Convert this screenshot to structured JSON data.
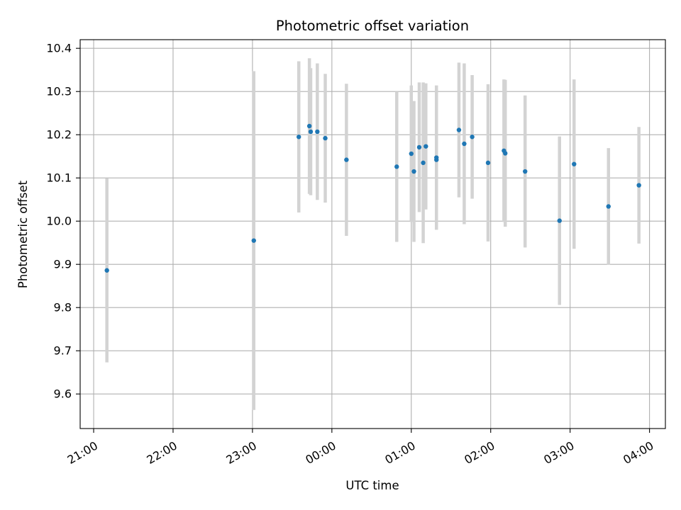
{
  "chart_data": {
    "type": "scatter",
    "title": "Photometric offset variation",
    "xlabel": "UTC time",
    "ylabel": "Photometric offset",
    "x_unit": "hours",
    "xlim": [
      20.83,
      28.2
    ],
    "ylim": [
      9.52,
      10.42
    ],
    "grid": true,
    "x_ticks": [
      {
        "value": 21,
        "label": "21:00"
      },
      {
        "value": 22,
        "label": "22:00"
      },
      {
        "value": 23,
        "label": "23:00"
      },
      {
        "value": 24,
        "label": "00:00"
      },
      {
        "value": 25,
        "label": "01:00"
      },
      {
        "value": 26,
        "label": "02:00"
      },
      {
        "value": 27,
        "label": "03:00"
      },
      {
        "value": 28,
        "label": "04:00"
      }
    ],
    "y_ticks": [
      {
        "value": 9.6,
        "label": "9.6"
      },
      {
        "value": 9.7,
        "label": "9.7"
      },
      {
        "value": 9.8,
        "label": "9.8"
      },
      {
        "value": 9.9,
        "label": "9.9"
      },
      {
        "value": 10.0,
        "label": "10.0"
      },
      {
        "value": 10.1,
        "label": "10.1"
      },
      {
        "value": 10.2,
        "label": "10.2"
      },
      {
        "value": 10.3,
        "label": "10.3"
      },
      {
        "value": 10.4,
        "label": "10.4"
      }
    ],
    "point_color": "#1f77b4",
    "errorbar_color": "#d3d3d3",
    "points": [
      {
        "x": "21:10",
        "y": 9.886,
        "err": 0.213
      },
      {
        "x": "23:01",
        "y": 9.955,
        "err": 0.392
      },
      {
        "x": "23:35",
        "y": 10.195,
        "err": 0.175
      },
      {
        "x": "23:43",
        "y": 10.22,
        "err": 0.157
      },
      {
        "x": "23:44",
        "y": 10.207,
        "err": 0.147
      },
      {
        "x": "23:49",
        "y": 10.207,
        "err": 0.158
      },
      {
        "x": "23:55",
        "y": 10.192,
        "err": 0.149
      },
      {
        "x": "00:11",
        "y": 10.142,
        "err": 0.176
      },
      {
        "x": "00:49",
        "y": 10.126,
        "err": 0.174
      },
      {
        "x": "01:00",
        "y": 10.156,
        "err": 0.158
      },
      {
        "x": "01:02",
        "y": 10.115,
        "err": 0.163
      },
      {
        "x": "01:06",
        "y": 10.171,
        "err": 0.15
      },
      {
        "x": "01:09",
        "y": 10.135,
        "err": 0.186
      },
      {
        "x": "01:11",
        "y": 10.173,
        "err": 0.146
      },
      {
        "x": "01:19",
        "y": 10.147,
        "err": 0.167
      },
      {
        "x": "01:19",
        "y": 10.142,
        "err": 0.16
      },
      {
        "x": "01:36",
        "y": 10.211,
        "err": 0.156
      },
      {
        "x": "01:40",
        "y": 10.179,
        "err": 0.186
      },
      {
        "x": "01:46",
        "y": 10.195,
        "err": 0.143
      },
      {
        "x": "01:58",
        "y": 10.135,
        "err": 0.182
      },
      {
        "x": "02:10",
        "y": 10.163,
        "err": 0.165
      },
      {
        "x": "02:11",
        "y": 10.157,
        "err": 0.17
      },
      {
        "x": "02:26",
        "y": 10.115,
        "err": 0.176
      },
      {
        "x": "02:52",
        "y": 10.001,
        "err": 0.195
      },
      {
        "x": "03:03",
        "y": 10.132,
        "err": 0.196
      },
      {
        "x": "03:29",
        "y": 10.034,
        "err": 0.135
      },
      {
        "x": "03:52",
        "y": 10.083,
        "err": 0.135
      }
    ]
  }
}
